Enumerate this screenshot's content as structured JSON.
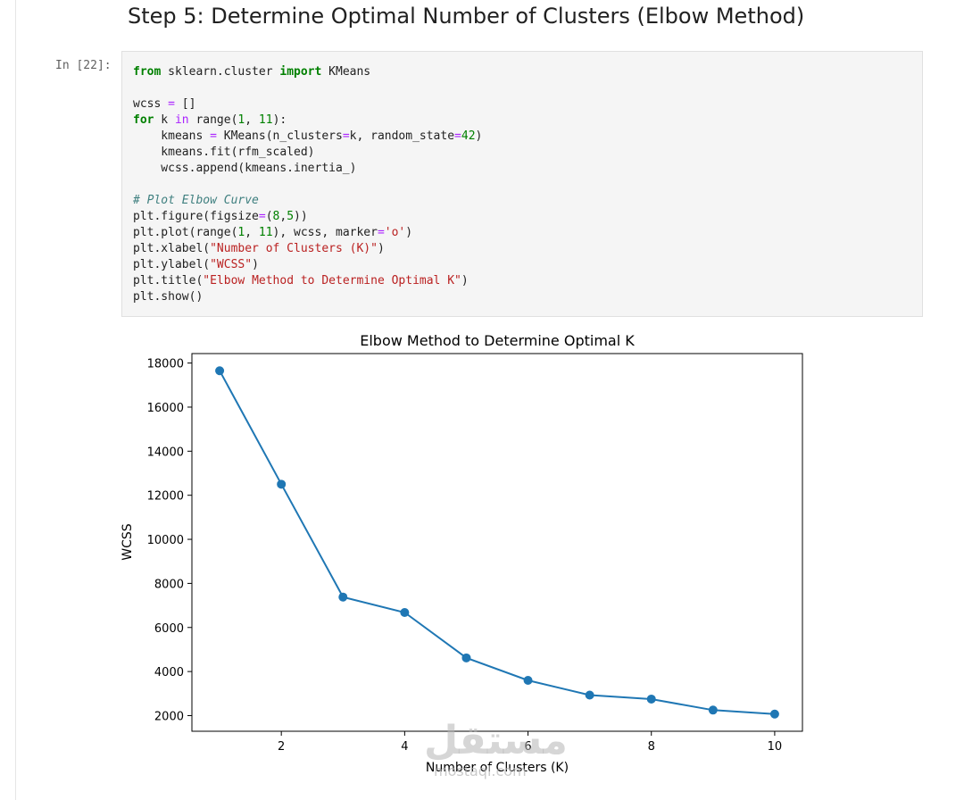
{
  "heading": "Step 5: Determine Optimal Number of Clusters (Elbow Method)",
  "prompt": "In [22]:",
  "code_lines": [
    [
      {
        "t": "from",
        "c": "kw"
      },
      {
        "t": " sklearn.cluster "
      },
      {
        "t": "import",
        "c": "kw"
      },
      {
        "t": " KMeans"
      }
    ],
    [],
    [
      {
        "t": "wcss "
      },
      {
        "t": "=",
        "c": "op"
      },
      {
        "t": " []"
      }
    ],
    [
      {
        "t": "for",
        "c": "kw"
      },
      {
        "t": " k "
      },
      {
        "t": "in",
        "c": "op"
      },
      {
        "t": " range("
      },
      {
        "t": "1",
        "c": "num"
      },
      {
        "t": ", "
      },
      {
        "t": "11",
        "c": "num"
      },
      {
        "t": "):"
      }
    ],
    [
      {
        "t": "    kmeans "
      },
      {
        "t": "=",
        "c": "op"
      },
      {
        "t": " KMeans(n_clusters"
      },
      {
        "t": "=",
        "c": "op"
      },
      {
        "t": "k, random_state"
      },
      {
        "t": "=",
        "c": "op"
      },
      {
        "t": "42",
        "c": "num"
      },
      {
        "t": ")"
      }
    ],
    [
      {
        "t": "    kmeans.fit(rfm_scaled)"
      }
    ],
    [
      {
        "t": "    wcss.append(kmeans.inertia_)"
      }
    ],
    [],
    [
      {
        "t": "# Plot Elbow Curve",
        "c": "cmt"
      }
    ],
    [
      {
        "t": "plt.figure(figsize"
      },
      {
        "t": "=",
        "c": "op"
      },
      {
        "t": "("
      },
      {
        "t": "8",
        "c": "num"
      },
      {
        "t": ","
      },
      {
        "t": "5",
        "c": "num"
      },
      {
        "t": "))"
      }
    ],
    [
      {
        "t": "plt.plot(range("
      },
      {
        "t": "1",
        "c": "num"
      },
      {
        "t": ", "
      },
      {
        "t": "11",
        "c": "num"
      },
      {
        "t": "), wcss, marker"
      },
      {
        "t": "=",
        "c": "op"
      },
      {
        "t": "'o'",
        "c": "str"
      },
      {
        "t": ")"
      }
    ],
    [
      {
        "t": "plt.xlabel("
      },
      {
        "t": "\"Number of Clusters (K)\"",
        "c": "str"
      },
      {
        "t": ")"
      }
    ],
    [
      {
        "t": "plt.ylabel("
      },
      {
        "t": "\"WCSS\"",
        "c": "str"
      },
      {
        "t": ")"
      }
    ],
    [
      {
        "t": "plt.title("
      },
      {
        "t": "\"Elbow Method to Determine Optimal K\"",
        "c": "str"
      },
      {
        "t": ")"
      }
    ],
    [
      {
        "t": "plt.show()"
      }
    ]
  ],
  "chart_data": {
    "type": "line",
    "title": "Elbow Method to Determine Optimal K",
    "xlabel": "Number of Clusters (K)",
    "ylabel": "WCSS",
    "x": [
      1,
      2,
      3,
      4,
      5,
      6,
      7,
      8,
      9,
      10
    ],
    "series": [
      {
        "values": [
          17650,
          12500,
          7380,
          6680,
          4620,
          3600,
          2930,
          2750,
          2250,
          2070
        ]
      }
    ],
    "xticks": [
      2,
      4,
      6,
      8,
      10
    ],
    "yticks": [
      2000,
      4000,
      6000,
      8000,
      10000,
      12000,
      14000,
      16000,
      18000
    ],
    "xlim": [
      0.55,
      10.45
    ],
    "ylim": [
      1290,
      18430
    ],
    "grid": false,
    "marker": "o",
    "color": "#1f77b4"
  },
  "watermark": {
    "arabic": "مستقل",
    "latin": "mostaql.com"
  }
}
